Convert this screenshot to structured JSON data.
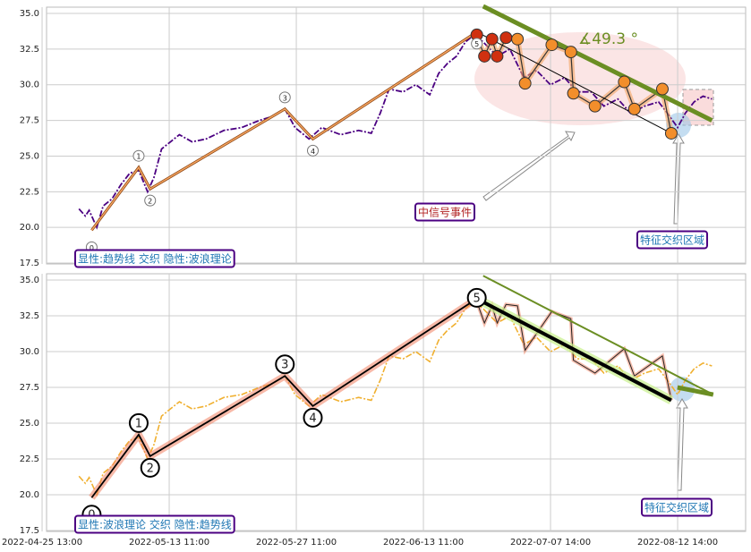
{
  "chart_data": [
    {
      "type": "line",
      "annotation": "显性:趋势线 交织 隐性:波浪理论",
      "event_label": "中信号事件",
      "region_label": "特征交织区域",
      "angle_label": "∡49.3 °",
      "xlim": [
        3.5,
        553.5
      ],
      "ylim": [
        17.44,
        35.44
      ],
      "grid": true,
      "yticks": [
        17.5,
        {
          "value": 20,
          "label": "20.0"
        },
        22.5,
        {
          "value": 25,
          "label": "25.0"
        },
        27.5,
        {
          "value": 30,
          "label": "30.0"
        },
        32.5,
        {
          "value": 35,
          "label": "35.0"
        }
      ],
      "price": {
        "color": "#4b0082",
        "x": [
          29,
          34,
          37,
          43,
          48,
          55,
          62,
          69,
          76,
          83,
          88,
          94,
          101,
          108,
          118,
          129,
          143,
          157,
          171,
          182,
          191,
          199,
          210,
          220,
          235,
          249,
          259,
          266,
          273,
          284,
          294,
          305,
          312,
          319,
          326,
          333,
          340,
          347,
          358,
          368,
          379,
          389,
          400,
          411,
          421,
          432,
          442,
          453,
          463,
          474,
          485,
          492,
          500,
          506,
          513,
          520,
          527
        ],
        "values": [
          21.3,
          20.8,
          21.2,
          20.0,
          21.5,
          22.0,
          23.0,
          23.8,
          24.0,
          22.5,
          23.5,
          25.5,
          26.0,
          26.5,
          26.0,
          26.2,
          26.8,
          27.0,
          27.5,
          27.8,
          28.3,
          27.0,
          26.2,
          27.0,
          26.5,
          26.8,
          26.6,
          28.0,
          29.7,
          29.5,
          30.0,
          29.3,
          30.8,
          31.5,
          32.0,
          33.0,
          33.5,
          33.0,
          32.0,
          32.5,
          30.5,
          31.0,
          30.0,
          30.5,
          29.5,
          29.5,
          28.5,
          29.0,
          28.0,
          28.5,
          28.8,
          28.0,
          27.0,
          28.0,
          28.8,
          29.2,
          29.0
        ]
      },
      "wave": {
        "color": "#f4a460",
        "labels": [
          "0",
          "1",
          "2",
          "3",
          "4",
          "5"
        ],
        "x": [
          39,
          76,
          85,
          191,
          213,
          342
        ],
        "values": [
          19.8,
          24.2,
          22.7,
          28.3,
          26.2,
          33.7
        ]
      },
      "zigzag": {
        "color": "#f28e2b",
        "x": [
          342,
          348,
          354,
          358,
          365,
          374,
          380,
          401,
          416,
          418,
          435,
          458,
          466,
          488,
          495
        ],
        "values": [
          33.5,
          32.0,
          33.2,
          32.0,
          33.3,
          33.2,
          30.1,
          32.8,
          32.3,
          29.4,
          28.5,
          30.2,
          28.3,
          29.7,
          26.6
        ]
      },
      "downtrend": {
        "color": "#6b8e23",
        "x": [
          347,
          527
        ],
        "values": [
          35.5,
          27.5
        ]
      }
    },
    {
      "type": "line",
      "annotation": "显性:波浪理论 交织 隐性:趋势线",
      "region_label": "特征交织区域",
      "xlim": [
        3.5,
        553.5
      ],
      "ylim": [
        17.44,
        35.44
      ],
      "grid": true,
      "xticks": [
        {
          "value": 0,
          "label": "2022-04-25 13:00"
        },
        {
          "value": 100,
          "label": "2022-05-13 11:00"
        },
        {
          "value": 200,
          "label": "2022-05-27 11:00"
        },
        {
          "value": 300,
          "label": "2022-06-13 11:00"
        },
        {
          "value": 400,
          "label": "2022-07-07 14:00"
        },
        {
          "value": 500,
          "label": "2022-08-12 14:00"
        }
      ],
      "yticks": [
        17.5,
        {
          "value": 20,
          "label": "20.0"
        },
        22.5,
        {
          "value": 25,
          "label": "25.0"
        },
        27.5,
        {
          "value": 30,
          "label": "30.0"
        },
        32.5,
        {
          "value": 35,
          "label": "35.0"
        }
      ],
      "price": {
        "color": "#f0b030",
        "x": [
          29,
          34,
          37,
          43,
          48,
          55,
          62,
          69,
          76,
          83,
          88,
          94,
          101,
          108,
          118,
          129,
          143,
          157,
          171,
          182,
          191,
          199,
          210,
          220,
          235,
          249,
          259,
          266,
          273,
          284,
          294,
          305,
          312,
          319,
          326,
          333,
          340,
          347,
          358,
          368,
          379,
          389,
          400,
          411,
          421,
          432,
          442,
          453,
          463,
          474,
          485,
          492,
          500,
          506,
          513,
          520,
          527
        ],
        "values": [
          21.3,
          20.8,
          21.2,
          20.0,
          21.5,
          22.0,
          23.0,
          23.8,
          24.0,
          22.5,
          23.5,
          25.5,
          26.0,
          26.5,
          26.0,
          26.2,
          26.8,
          27.0,
          27.5,
          27.8,
          28.3,
          27.0,
          26.2,
          27.0,
          26.5,
          26.8,
          26.6,
          28.0,
          29.7,
          29.5,
          30.0,
          29.3,
          30.8,
          31.5,
          32.0,
          33.0,
          33.5,
          33.0,
          32.0,
          32.5,
          30.5,
          31.0,
          30.0,
          30.5,
          29.5,
          29.5,
          28.5,
          29.0,
          28.0,
          28.5,
          28.8,
          28.0,
          27.0,
          28.0,
          28.8,
          29.2,
          29.0
        ]
      },
      "wave": {
        "color": "#000000",
        "labels": [
          "0",
          "1",
          "2",
          "3",
          "4",
          "5"
        ],
        "x": [
          39,
          76,
          85,
          191,
          213,
          342
        ],
        "values": [
          19.8,
          24.2,
          22.7,
          28.3,
          26.2,
          33.7
        ]
      },
      "zigzag": {
        "color": "#222222",
        "x": [
          342,
          348,
          354,
          358,
          365,
          374,
          380,
          401,
          416,
          418,
          435,
          458,
          466,
          488,
          495
        ],
        "values": [
          33.5,
          32.0,
          33.2,
          32.0,
          33.3,
          33.2,
          30.1,
          32.8,
          32.3,
          29.4,
          28.5,
          30.2,
          28.3,
          29.7,
          26.6
        ]
      },
      "downtrend": {
        "color": "#6b8e23",
        "x": [
          347,
          528
        ],
        "values": [
          35.3,
          27.0
        ]
      }
    }
  ]
}
